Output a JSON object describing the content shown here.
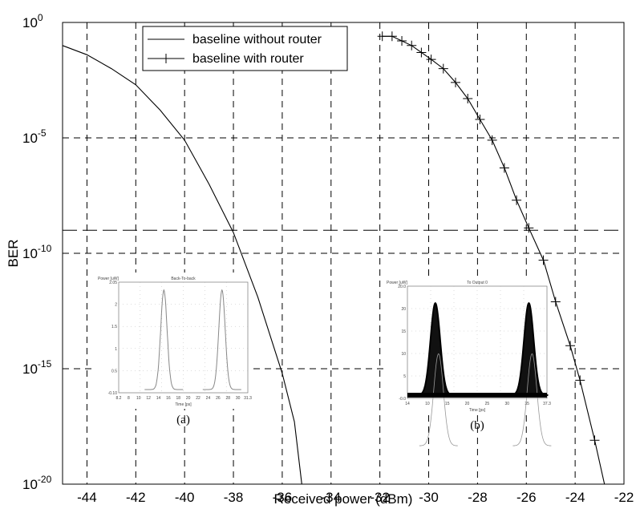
{
  "chart_data": {
    "type": "line",
    "xlabel": "Received power (dBm)",
    "ylabel": "BER",
    "xlim": [
      -45,
      -22
    ],
    "ylim_log10": [
      -20,
      0
    ],
    "y_scale": "log",
    "grid": true,
    "legend_position": "top-center",
    "x_ticks": [
      "-44",
      "-42",
      "-40",
      "-38",
      "-36",
      "-34",
      "-32",
      "-30",
      "-28",
      "-26",
      "-24",
      "-22"
    ],
    "y_ticks": [
      {
        "base": "10",
        "exp": "0",
        "value_log10": 0
      },
      {
        "base": "10",
        "exp": "-5",
        "value_log10": -5
      },
      {
        "base": "10",
        "exp": "-10",
        "value_log10": -10
      },
      {
        "base": "10",
        "exp": "-15",
        "value_log10": -15
      },
      {
        "base": "10",
        "exp": "-20",
        "value_log10": -20
      }
    ],
    "reference_line_log10": -9,
    "series": [
      {
        "name": "baseline without router",
        "marker": "none",
        "x": [
          -45,
          -44,
          -43,
          -42,
          -41,
          -40,
          -39,
          -38,
          -37,
          -36,
          -35.5,
          -35.2
        ],
        "log10_y": [
          -1.0,
          -1.4,
          -2.0,
          -2.7,
          -3.8,
          -5.1,
          -7.0,
          -9.1,
          -11.9,
          -15.2,
          -17.3,
          -20
        ]
      },
      {
        "name": "baseline with router",
        "marker": "plus",
        "x": [
          -31.9,
          -31.5,
          -31.1,
          -30.7,
          -30.3,
          -29.9,
          -29.4,
          -28.9,
          -28.4,
          -27.9,
          -27.4,
          -26.9,
          -26.4,
          -25.9,
          -25.3,
          -24.8,
          -24.2,
          -23.8,
          -23.2,
          -22.8
        ],
        "log10_y": [
          -0.6,
          -0.6,
          -0.8,
          -1.0,
          -1.3,
          -1.6,
          -2.0,
          -2.6,
          -3.3,
          -4.2,
          -5.1,
          -6.3,
          -7.7,
          -8.9,
          -10.3,
          -12.1,
          -14.0,
          -15.5,
          -18.1,
          -20
        ]
      }
    ]
  },
  "insets": [
    {
      "caption": "(a)",
      "title": "Back-To-back",
      "ylabel": "Power [uW]",
      "xlabel": "Time [ps]",
      "y_tick_labels": [
        "2.05",
        "2",
        "1.5",
        "1",
        "0.5",
        "-0.10"
      ],
      "x_tick_labels": [
        "8.2",
        "8",
        "10",
        "12",
        "14",
        "16",
        "18",
        "20",
        "22",
        "24",
        "26",
        "28",
        "30",
        "31.3"
      ]
    },
    {
      "caption": "(b)",
      "title": "To Output 0",
      "ylabel": "Power [uW]",
      "xlabel": "Time [ps]",
      "y_tick_labels": [
        "20.0",
        "20",
        "15",
        "10",
        "5",
        "-0.0"
      ],
      "x_tick_labels": [
        "14",
        "10",
        "15",
        "20",
        "25",
        "30",
        "35",
        "37.3"
      ]
    }
  ]
}
